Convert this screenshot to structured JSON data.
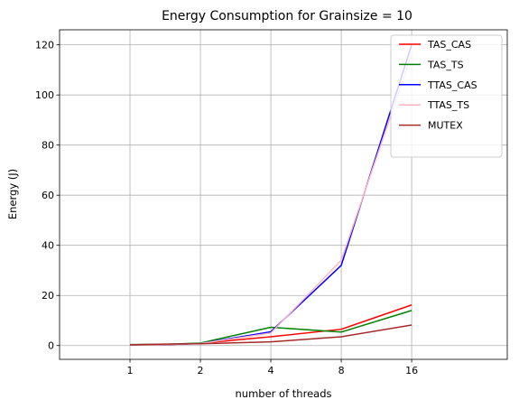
{
  "chart_data": {
    "type": "line",
    "title": "Energy Consumption for Grainsize = 10",
    "xlabel": "number of threads",
    "ylabel": "Energy (J)",
    "x": [
      1,
      2,
      4,
      8,
      16
    ],
    "xticks": [
      "1",
      "2",
      "4",
      "8",
      "16"
    ],
    "xlim": [
      0.5,
      41
    ],
    "ylim": [
      -5.5,
      126
    ],
    "yticks": [
      "0",
      "20",
      "40",
      "60",
      "80",
      "100",
      "120"
    ],
    "grid": true,
    "legend": "top-right",
    "series": [
      {
        "name": "TAS_CAS",
        "color": "#ff0000",
        "points": [
          [
            1,
            0.3
          ],
          [
            1.4,
            0.3
          ],
          [
            2,
            0.9
          ],
          [
            4,
            3.5
          ],
          [
            8,
            6.5
          ],
          [
            16,
            16.2
          ]
        ]
      },
      {
        "name": "TAS_TS",
        "color": "#008000",
        "points": [
          [
            1,
            0.4
          ],
          [
            1.4,
            0.5
          ],
          [
            2,
            1.0
          ],
          [
            4,
            7.3
          ],
          [
            8,
            5.4
          ],
          [
            16,
            14.0
          ]
        ]
      },
      {
        "name": "TTAS_CAS",
        "color": "#0000ff",
        "points": [
          [
            1,
            0.3
          ],
          [
            1.4,
            0.4
          ],
          [
            2,
            0.8
          ],
          [
            4,
            5.5
          ],
          [
            8,
            32.0
          ],
          [
            16,
            120.0
          ]
        ]
      },
      {
        "name": "TTAS_TS",
        "color": "#ffb6c1",
        "points": [
          [
            1,
            0.3
          ],
          [
            1.4,
            0.4
          ],
          [
            2,
            0.8
          ],
          [
            4,
            5.0
          ],
          [
            8,
            34.0
          ],
          [
            16,
            116.0
          ]
        ]
      },
      {
        "name": "MUTEX",
        "color": "#a52a2a",
        "points": [
          [
            1,
            0.3
          ],
          [
            1.4,
            0.6
          ],
          [
            2,
            0.7
          ],
          [
            4,
            1.5
          ],
          [
            8,
            3.5
          ],
          [
            16,
            8.2
          ]
        ]
      }
    ]
  }
}
